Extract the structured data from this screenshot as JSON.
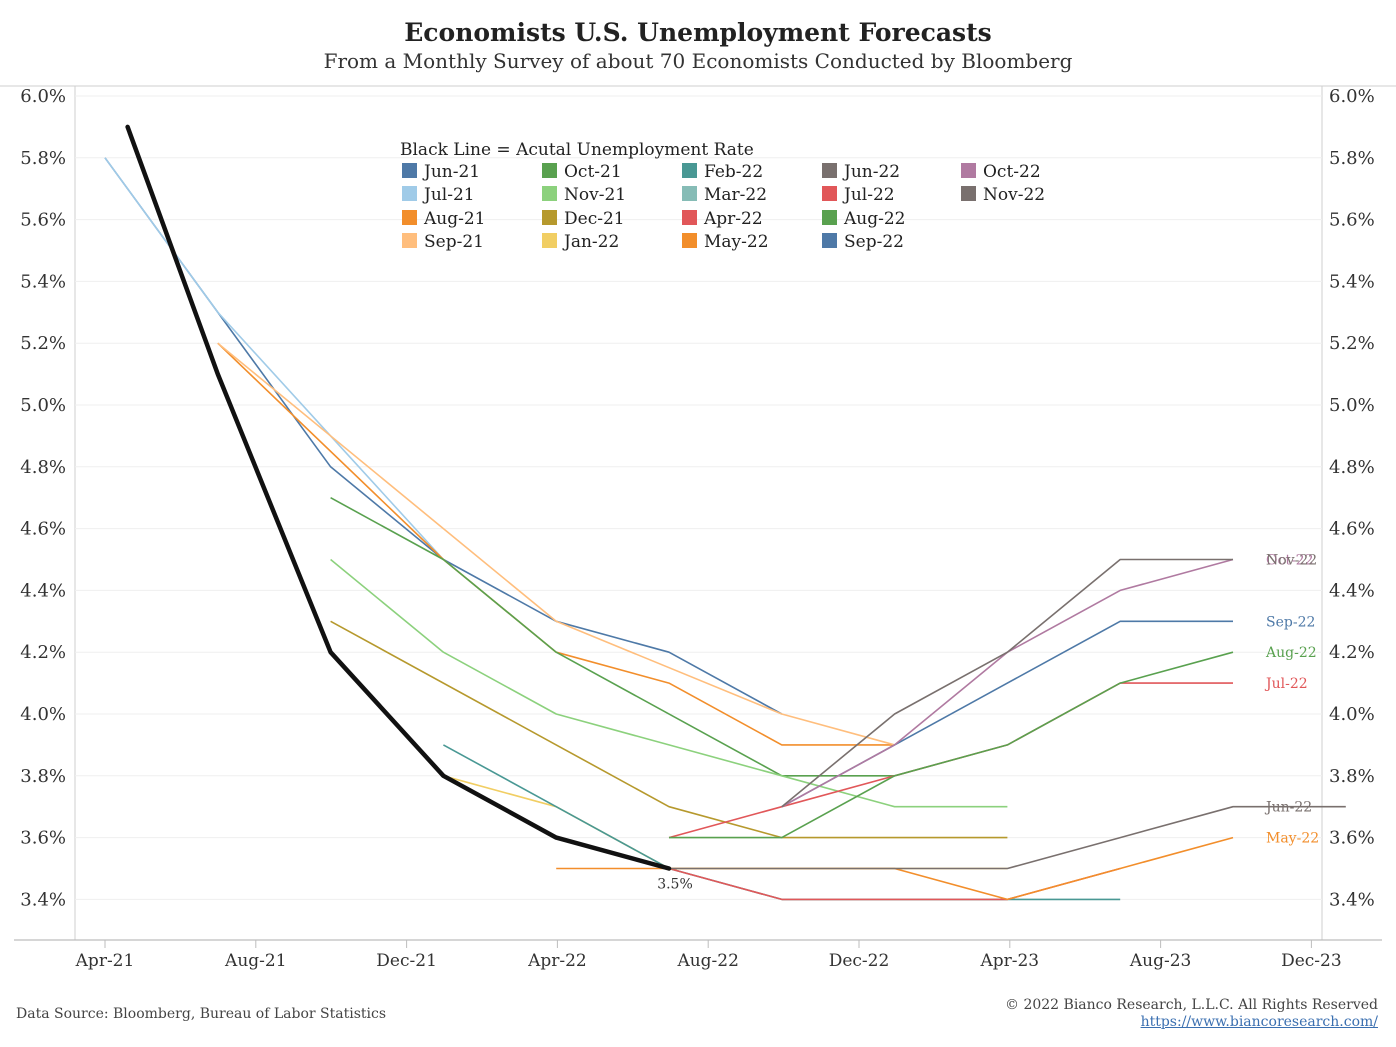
{
  "header": {
    "title": "Economists U.S. Unemployment Forecasts",
    "subtitle": "From a Monthly Survey of about 70 Economists Conducted by Bloomberg"
  },
  "footer": {
    "source": "Data Source: Bloomberg, Bureau of Labor Statistics",
    "copyright": "© 2022 Bianco Research, L.L.C. All Rights Reserved",
    "url": "https://www.biancoresearch.com/"
  },
  "chart_data": {
    "type": "line",
    "title": "Economists U.S. Unemployment Forecasts",
    "subtitle": "From a Monthly Survey of about 70 Economists Conducted by Bloomberg",
    "legend_title": "Black Line = Acutal Unemployment Rate",
    "legend_placement": "top-center",
    "x_ticks": [
      "Apr-21",
      "Aug-21",
      "Dec-21",
      "Apr-22",
      "Aug-22",
      "Dec-22",
      "Apr-23",
      "Aug-23",
      "Dec-23"
    ],
    "y_ticks": [
      "6.0%",
      "5.8%",
      "5.6%",
      "5.4%",
      "5.2%",
      "5.0%",
      "4.8%",
      "4.6%",
      "4.4%",
      "4.2%",
      "4.0%",
      "3.8%",
      "3.6%",
      "3.4%"
    ],
    "ylim": [
      3.35,
      6.03
    ],
    "grid": true,
    "actual": {
      "name": "Actual Unemployment Rate",
      "color": "#111111",
      "points": [
        [
          0.2,
          5.9
        ],
        [
          1,
          5.1
        ],
        [
          2,
          4.2
        ],
        [
          3,
          3.8
        ],
        [
          4,
          3.6
        ],
        [
          5,
          3.5
        ]
      ],
      "last_label": "3.5%"
    },
    "series": [
      {
        "name": "Jun-21",
        "color": "#4e79a7",
        "points": [
          [
            0,
            5.8
          ],
          [
            2,
            4.8
          ],
          [
            3,
            4.5
          ],
          [
            4,
            4.3
          ],
          [
            5,
            4.2
          ],
          [
            6,
            4.0
          ]
        ]
      },
      {
        "name": "Jul-21",
        "color": "#a0cbe8",
        "points": [
          [
            0,
            5.8
          ],
          [
            1,
            5.3
          ],
          [
            2,
            4.9
          ],
          [
            3,
            4.5
          ]
        ]
      },
      {
        "name": "Aug-21",
        "color": "#f28e2b",
        "points": [
          [
            1,
            5.2
          ],
          [
            3,
            4.5
          ],
          [
            4,
            4.2
          ],
          [
            5,
            4.1
          ],
          [
            6,
            3.9
          ],
          [
            7,
            3.9
          ]
        ]
      },
      {
        "name": "Sep-21",
        "color": "#ffbe7d",
        "points": [
          [
            1,
            5.2
          ],
          [
            3,
            4.6
          ],
          [
            4,
            4.3
          ],
          [
            6,
            4.0
          ],
          [
            7,
            3.9
          ]
        ]
      },
      {
        "name": "Oct-21",
        "color": "#59a14f",
        "points": [
          [
            2,
            4.7
          ],
          [
            3,
            4.5
          ],
          [
            4,
            4.2
          ],
          [
            6,
            3.8
          ],
          [
            7,
            3.8
          ]
        ]
      },
      {
        "name": "Nov-21",
        "color": "#8cd17d",
        "points": [
          [
            2,
            4.5
          ],
          [
            3,
            4.2
          ],
          [
            4,
            4.0
          ],
          [
            5,
            3.9
          ],
          [
            6,
            3.8
          ],
          [
            7,
            3.7
          ],
          [
            8,
            3.7
          ]
        ]
      },
      {
        "name": "Dec-21",
        "color": "#b6992d",
        "points": [
          [
            2,
            4.3
          ],
          [
            4,
            3.9
          ],
          [
            5,
            3.7
          ],
          [
            6,
            3.6
          ],
          [
            8,
            3.6
          ]
        ]
      },
      {
        "name": "Jan-22",
        "color": "#f1ce63",
        "points": [
          [
            3,
            3.8
          ],
          [
            4,
            3.7
          ],
          [
            5,
            3.5
          ],
          [
            8,
            3.5
          ]
        ]
      },
      {
        "name": "Feb-22",
        "color": "#499894",
        "points": [
          [
            3,
            3.9
          ],
          [
            4,
            3.7
          ],
          [
            5,
            3.5
          ],
          [
            6,
            3.4
          ],
          [
            9,
            3.4
          ]
        ]
      },
      {
        "name": "Mar-22",
        "color": "#86bcb6",
        "points": [
          [
            4,
            3.6
          ],
          [
            5,
            3.5
          ],
          [
            6,
            3.4
          ],
          [
            8,
            3.4
          ]
        ]
      },
      {
        "name": "Apr-22",
        "color": "#e15759",
        "points": [
          [
            5,
            3.5
          ],
          [
            6,
            3.4
          ],
          [
            8,
            3.4
          ],
          [
            9,
            3.5
          ]
        ]
      },
      {
        "name": "May-22",
        "color": "#f28e2b",
        "points": [
          [
            4,
            3.5
          ],
          [
            7,
            3.5
          ],
          [
            8,
            3.4
          ],
          [
            9,
            3.5
          ],
          [
            10,
            3.6
          ]
        ],
        "end_label": "May-22"
      },
      {
        "name": "Jun-22",
        "color": "#79706e",
        "points": [
          [
            5,
            3.5
          ],
          [
            7,
            3.5
          ],
          [
            8,
            3.5
          ],
          [
            9,
            3.6
          ],
          [
            10,
            3.7
          ],
          [
            11,
            3.7
          ]
        ],
        "end_label": "Jun-22"
      },
      {
        "name": "Jul-22",
        "color": "#e15759",
        "points": [
          [
            5,
            3.6
          ],
          [
            6,
            3.7
          ],
          [
            7,
            3.8
          ],
          [
            8,
            3.9
          ],
          [
            9,
            4.1
          ],
          [
            10,
            4.1
          ]
        ],
        "end_label": "Jul-22"
      },
      {
        "name": "Aug-22",
        "color": "#59a14f",
        "points": [
          [
            5,
            3.6
          ],
          [
            6,
            3.6
          ],
          [
            7,
            3.8
          ],
          [
            8,
            3.9
          ],
          [
            9,
            4.1
          ],
          [
            10,
            4.2
          ]
        ],
        "end_label": "Aug-22"
      },
      {
        "name": "Sep-22",
        "color": "#4e79a7",
        "points": [
          [
            6,
            3.7
          ],
          [
            7,
            3.9
          ],
          [
            8,
            4.1
          ],
          [
            9,
            4.3
          ],
          [
            10,
            4.3
          ]
        ],
        "end_label": "Sep-22"
      },
      {
        "name": "Oct-22",
        "color": "#b07aa1",
        "points": [
          [
            6,
            3.7
          ],
          [
            7,
            3.9
          ],
          [
            8,
            4.2
          ],
          [
            9,
            4.4
          ],
          [
            10,
            4.5
          ]
        ],
        "end_label": "Oct-22"
      },
      {
        "name": "Nov-22",
        "color": "#79706e",
        "points": [
          [
            6,
            3.7
          ],
          [
            7,
            4.0
          ],
          [
            8,
            4.2
          ],
          [
            9,
            4.5
          ],
          [
            10,
            4.5
          ]
        ],
        "end_label": "Nov-22"
      }
    ]
  }
}
